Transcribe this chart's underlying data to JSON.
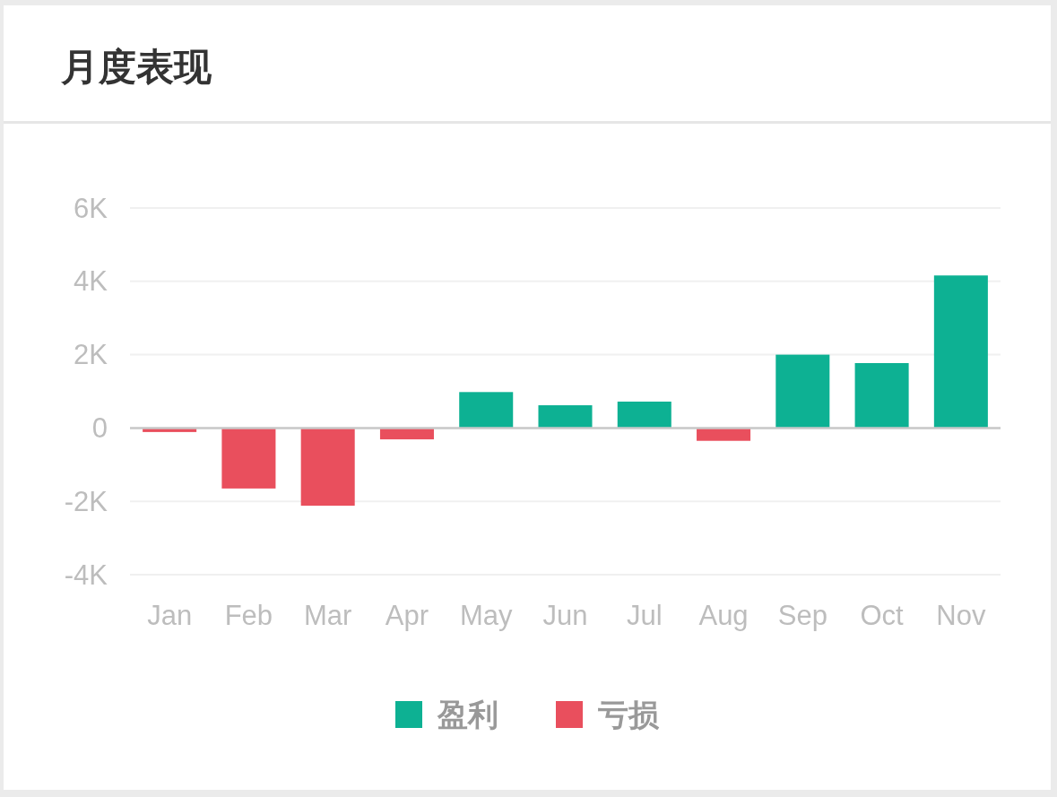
{
  "chart_data": {
    "type": "bar",
    "title": "月度表现",
    "categories": [
      "Jan",
      "Feb",
      "Mar",
      "Apr",
      "May",
      "Jun",
      "Jul",
      "Aug",
      "Sep",
      "Oct",
      "Nov"
    ],
    "stacked": true,
    "series": [
      {
        "name": "盈利",
        "color": "#0db193",
        "values": [
          null,
          null,
          null,
          null,
          980,
          620,
          720,
          null,
          2000,
          1770,
          4160
        ]
      },
      {
        "name": "亏损",
        "color": "#e94f5d",
        "values": [
          -110,
          -1650,
          -2120,
          -310,
          null,
          null,
          null,
          -350,
          null,
          null,
          null
        ]
      }
    ],
    "ylim": [
      -4000,
      6000
    ],
    "yticks": [
      {
        "value": -4000,
        "label": "-4K"
      },
      {
        "value": -2000,
        "label": "-2K"
      },
      0,
      {
        "value": 2000,
        "label": "2K"
      },
      {
        "value": 4000,
        "label": "4K"
      },
      {
        "value": 6000,
        "label": "6K"
      }
    ],
    "grid": "y",
    "legend": "bottom"
  }
}
